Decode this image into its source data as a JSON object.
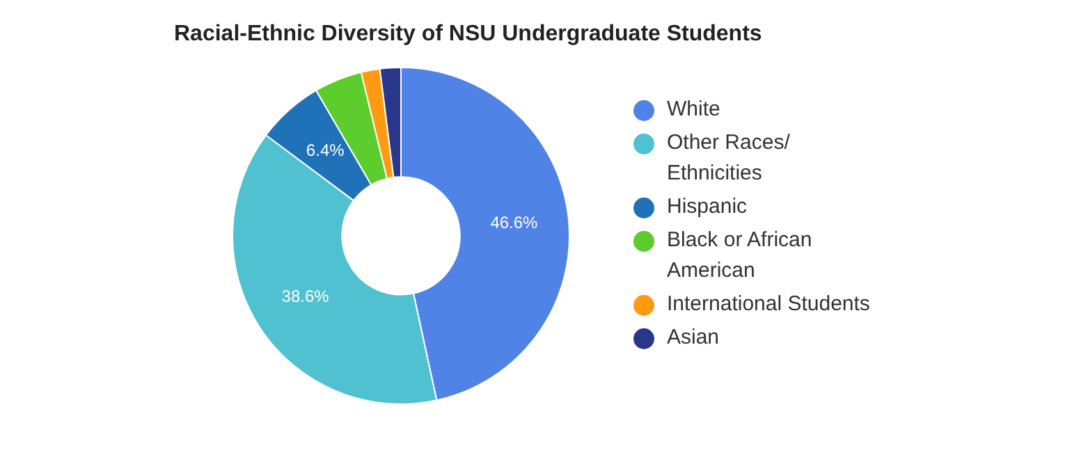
{
  "chart_data": {
    "type": "donut",
    "title": "Racial-Ethnic Diversity of NSU Undergraduate Students",
    "categories": [
      "White",
      "Other Races/ Ethnicities",
      "Hispanic",
      "Black or African American",
      "International Students",
      "Asian"
    ],
    "values": [
      46.6,
      38.6,
      6.4,
      4.6,
      1.8,
      2.0
    ],
    "colors": [
      "#5083e6",
      "#4fc1d0",
      "#1f72b8",
      "#5ccd2c",
      "#ff9a12",
      "#29378a"
    ],
    "value_labels": [
      "46.6%",
      "38.6%",
      "6.4%",
      null,
      null,
      null
    ],
    "legend": "right"
  }
}
